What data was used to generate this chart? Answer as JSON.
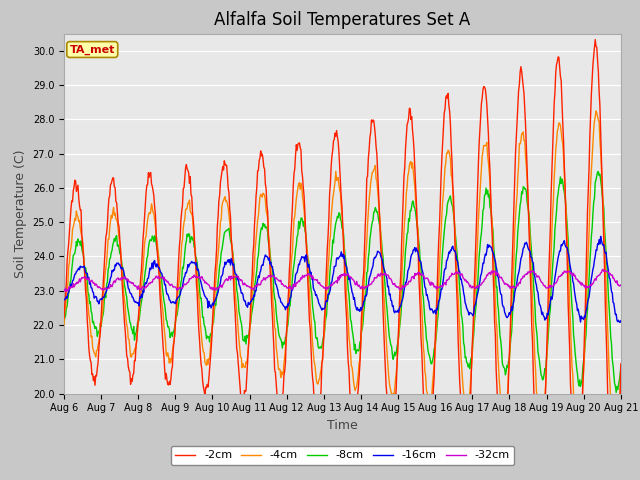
{
  "title": "Alfalfa Soil Temperatures Set A",
  "xlabel": "Time",
  "ylabel": "Soil Temperature (C)",
  "ylim": [
    20.0,
    30.5
  ],
  "yticks": [
    20.0,
    21.0,
    22.0,
    23.0,
    24.0,
    25.0,
    26.0,
    27.0,
    28.0,
    29.0,
    30.0
  ],
  "fig_bg_color": "#c8c8c8",
  "plot_bg_color": "#e8e8e8",
  "grid_color": "#ffffff",
  "line_colors": {
    "-2cm": "#ff2200",
    "-4cm": "#ff8800",
    "-8cm": "#00cc00",
    "-16cm": "#0000ee",
    "-32cm": "#cc00cc"
  },
  "legend_labels": [
    "-2cm",
    "-4cm",
    "-8cm",
    "-16cm",
    "-32cm"
  ],
  "annotation_text": "TA_met",
  "annotation_bg": "#ffffaa",
  "annotation_border": "#aa8800",
  "annotation_text_color": "#cc0000",
  "title_fontsize": 12,
  "tick_fontsize": 7,
  "axis_label_fontsize": 9,
  "linewidth": 1.0
}
